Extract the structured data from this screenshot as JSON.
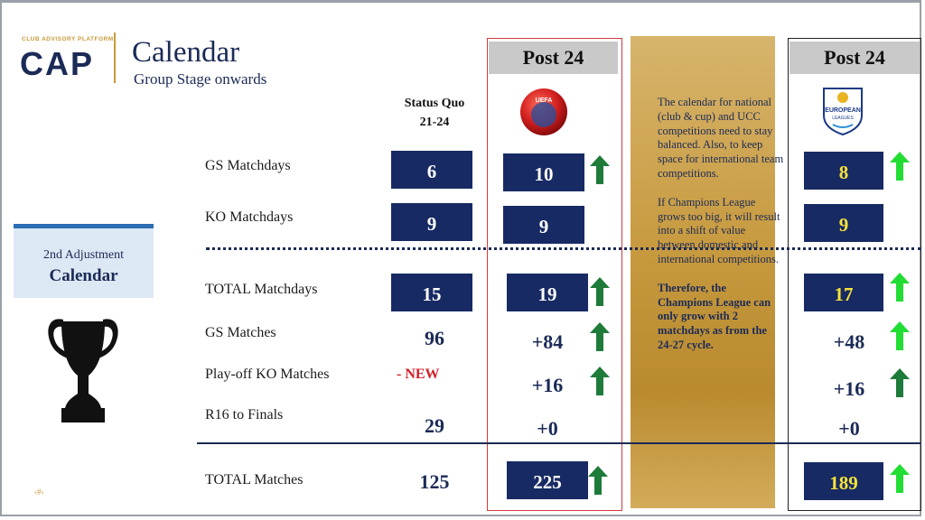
{
  "logo": {
    "small_text": "CLUB ADVISORY PLATFORM",
    "big_text": "CAP"
  },
  "header": {
    "title": "Calendar",
    "subtitle": "Group Stage onwards"
  },
  "adjustment": {
    "line1": "2nd Adjustment",
    "line2": "Calendar"
  },
  "page_num": "‹#›",
  "columns": {
    "status_quo": [
      "Status Quo",
      "21-24"
    ],
    "post_24_uefa": "Post 24",
    "post_24_el": "Post 24"
  },
  "uefa_logo_text": "UEFA",
  "el_logo_text": [
    "EUROPEAN",
    "LEAGUES"
  ],
  "rows": {
    "gs_matchdays": {
      "label": "GS Matchdays",
      "sq": "6",
      "p1": "10",
      "p2": "8"
    },
    "ko_matchdays": {
      "label": "KO Matchdays",
      "sq": "9",
      "p1": "9",
      "p2": "9"
    },
    "total_matchdays": {
      "label": "TOTAL Matchdays",
      "sq": "15",
      "p1": "19",
      "p2": "17"
    },
    "gs_matches": {
      "label": "GS Matches",
      "sq": "96",
      "p1": "+84",
      "p2": "+48"
    },
    "playoff_ko": {
      "label": "Play-off KO Matches",
      "sq": "- NEW",
      "p1": "+16",
      "p2": "+16"
    },
    "r16_finals": {
      "label": "R16 to Finals",
      "sq": "29",
      "p1": "+0",
      "p2": "+0"
    },
    "total_matches": {
      "label": "TOTAL Matches",
      "sq": "125",
      "p1": "225",
      "p2": "189"
    }
  },
  "gold_panel": {
    "para1": "The calendar for national (club & cup) and UCC competitions need to stay balanced. Also, to keep space for international team competitions.",
    "para2": "If Champions League grows too big, it will result into a shift of value between domestic and international competitions.",
    "para3": "Therefore, the Champions League can only grow with 2 matchdays as from the 24-27 cycle."
  },
  "colors": {
    "navy": "#172a63",
    "gold": "#c89a3a",
    "arrow_dark_green": "#1e7b3a",
    "arrow_light_green": "#22dd33",
    "red": "#d3202a",
    "yellow": "#f7e33a"
  }
}
